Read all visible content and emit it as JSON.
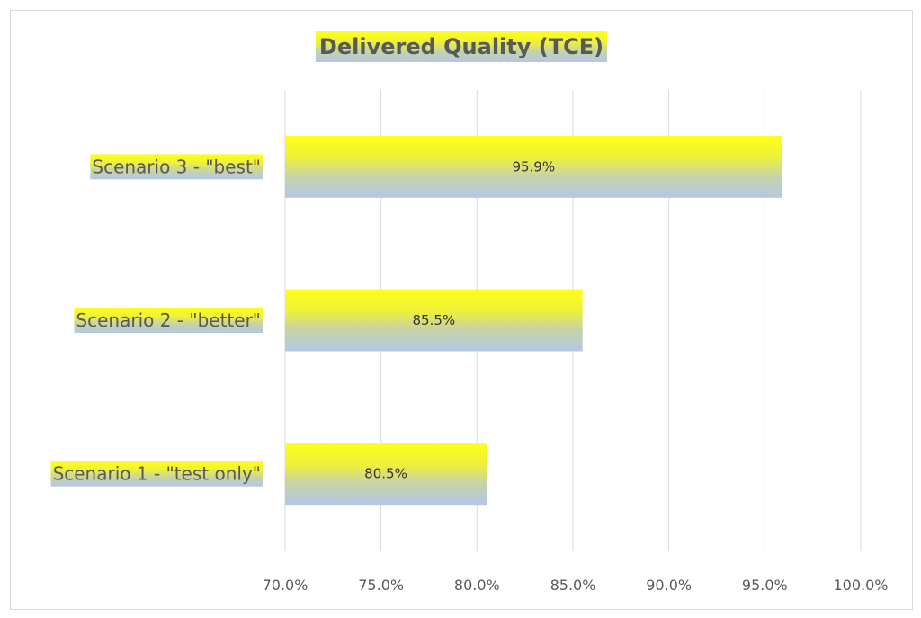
{
  "chart_data": {
    "type": "bar",
    "orientation": "horizontal",
    "title": "Delivered Quality (TCE)",
    "categories": [
      "Scenario 1 - \"test only\"",
      "Scenario 2 - \"better\"",
      "Scenario 3 - \"best\""
    ],
    "values": [
      80.5,
      85.5,
      95.9
    ],
    "data_labels": [
      "80.5%",
      "85.5%",
      "95.9%"
    ],
    "x_ticks": [
      "70.0%",
      "75.0%",
      "80.0%",
      "85.0%",
      "90.0%",
      "95.0%",
      "100.0%"
    ],
    "xlim": [
      70,
      100
    ],
    "xlabel": "",
    "ylabel": "",
    "grid": "vertical",
    "legend": "none",
    "colors": {
      "fill_top": "#ffff1a",
      "fill_bottom": "#b4c7e7",
      "gridline": "#d9d9d9",
      "text": "#595959"
    }
  }
}
